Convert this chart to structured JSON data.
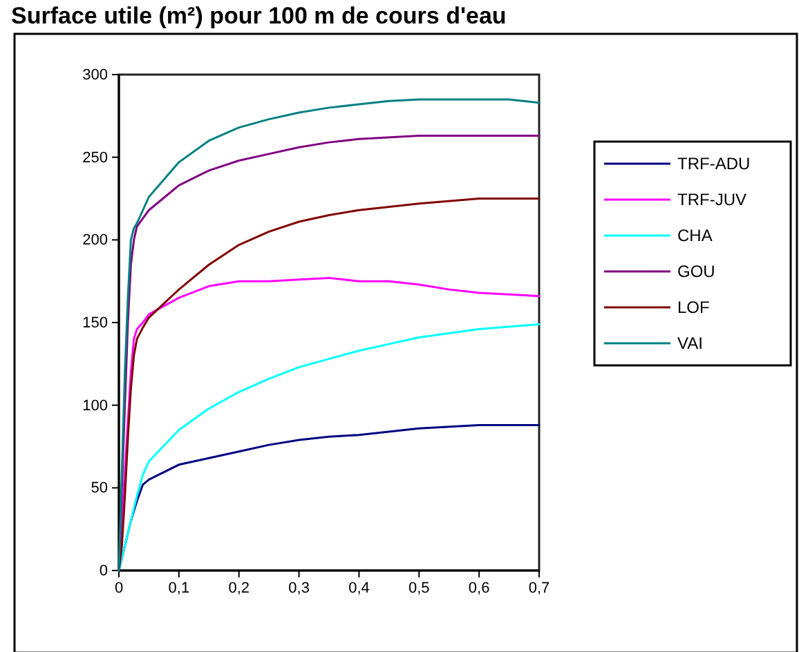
{
  "chart_data": {
    "type": "line",
    "title": "Surface utile (m²) pour 100 m de cours d'eau",
    "xlim": [
      0,
      0.7
    ],
    "ylim": [
      0,
      300
    ],
    "xticks": [
      {
        "value": 0,
        "label": "0"
      },
      {
        "value": 0.1,
        "label": "0,1"
      },
      {
        "value": 0.2,
        "label": "0,2"
      },
      {
        "value": 0.3,
        "label": "0,3"
      },
      {
        "value": 0.4,
        "label": "0,4"
      },
      {
        "value": 0.5,
        "label": "0,5"
      },
      {
        "value": 0.6,
        "label": "0,6"
      },
      {
        "value": 0.7,
        "label": "0,7"
      }
    ],
    "yticks": [
      0,
      50,
      100,
      150,
      200,
      250,
      300
    ],
    "grid": false,
    "legend": "right",
    "marker": "none",
    "line_style": "solid",
    "series": [
      {
        "name": "TRF-ADU",
        "color": "#000080",
        "x": [
          0,
          0.01,
          0.02,
          0.03,
          0.04,
          0.05,
          0.1,
          0.15,
          0.2,
          0.25,
          0.3,
          0.35,
          0.4,
          0.45,
          0.5,
          0.6,
          0.7
        ],
        "values": [
          0,
          15,
          30,
          42,
          52,
          55,
          64,
          68,
          72,
          76,
          79,
          81,
          82,
          84,
          86,
          88,
          88
        ]
      },
      {
        "name": "TRF-JUV",
        "color": "#ff00ff",
        "x": [
          0,
          0.005,
          0.01,
          0.015,
          0.02,
          0.025,
          0.03,
          0.04,
          0.05,
          0.1,
          0.15,
          0.2,
          0.25,
          0.3,
          0.35,
          0.4,
          0.45,
          0.5,
          0.55,
          0.6,
          0.7
        ],
        "values": [
          0,
          30,
          60,
          90,
          120,
          140,
          146,
          150,
          155,
          165,
          172,
          175,
          175,
          176,
          177,
          175,
          175,
          173,
          170,
          168,
          166
        ]
      },
      {
        "name": "CHA",
        "color": "#00ffff",
        "x": [
          0,
          0.01,
          0.02,
          0.03,
          0.04,
          0.05,
          0.1,
          0.15,
          0.2,
          0.25,
          0.3,
          0.35,
          0.4,
          0.45,
          0.5,
          0.6,
          0.7
        ],
        "values": [
          0,
          15,
          30,
          45,
          58,
          66,
          85,
          98,
          108,
          116,
          123,
          128,
          133,
          137,
          141,
          146,
          149
        ]
      },
      {
        "name": "GOU",
        "color": "#800080",
        "x": [
          0,
          0.005,
          0.01,
          0.015,
          0.02,
          0.025,
          0.03,
          0.04,
          0.05,
          0.1,
          0.15,
          0.2,
          0.25,
          0.3,
          0.35,
          0.4,
          0.5,
          0.6,
          0.7
        ],
        "values": [
          0,
          50,
          100,
          150,
          185,
          200,
          208,
          213,
          218,
          233,
          242,
          248,
          252,
          256,
          259,
          261,
          263,
          263,
          263
        ]
      },
      {
        "name": "LOF",
        "color": "#800000",
        "x": [
          0,
          0.005,
          0.01,
          0.015,
          0.02,
          0.025,
          0.03,
          0.04,
          0.05,
          0.1,
          0.15,
          0.2,
          0.25,
          0.3,
          0.35,
          0.4,
          0.5,
          0.6,
          0.7
        ],
        "values": [
          0,
          15,
          45,
          80,
          110,
          130,
          140,
          147,
          153,
          170,
          185,
          197,
          205,
          211,
          215,
          218,
          222,
          225,
          225
        ]
      },
      {
        "name": "VAI",
        "color": "#008080",
        "x": [
          0,
          0.005,
          0.01,
          0.015,
          0.02,
          0.025,
          0.03,
          0.04,
          0.05,
          0.1,
          0.15,
          0.2,
          0.25,
          0.3,
          0.35,
          0.4,
          0.45,
          0.5,
          0.6,
          0.65,
          0.7
        ],
        "values": [
          0,
          60,
          120,
          165,
          200,
          207,
          210,
          218,
          226,
          247,
          260,
          268,
          273,
          277,
          280,
          282,
          284,
          285,
          285,
          285,
          283
        ]
      }
    ]
  }
}
